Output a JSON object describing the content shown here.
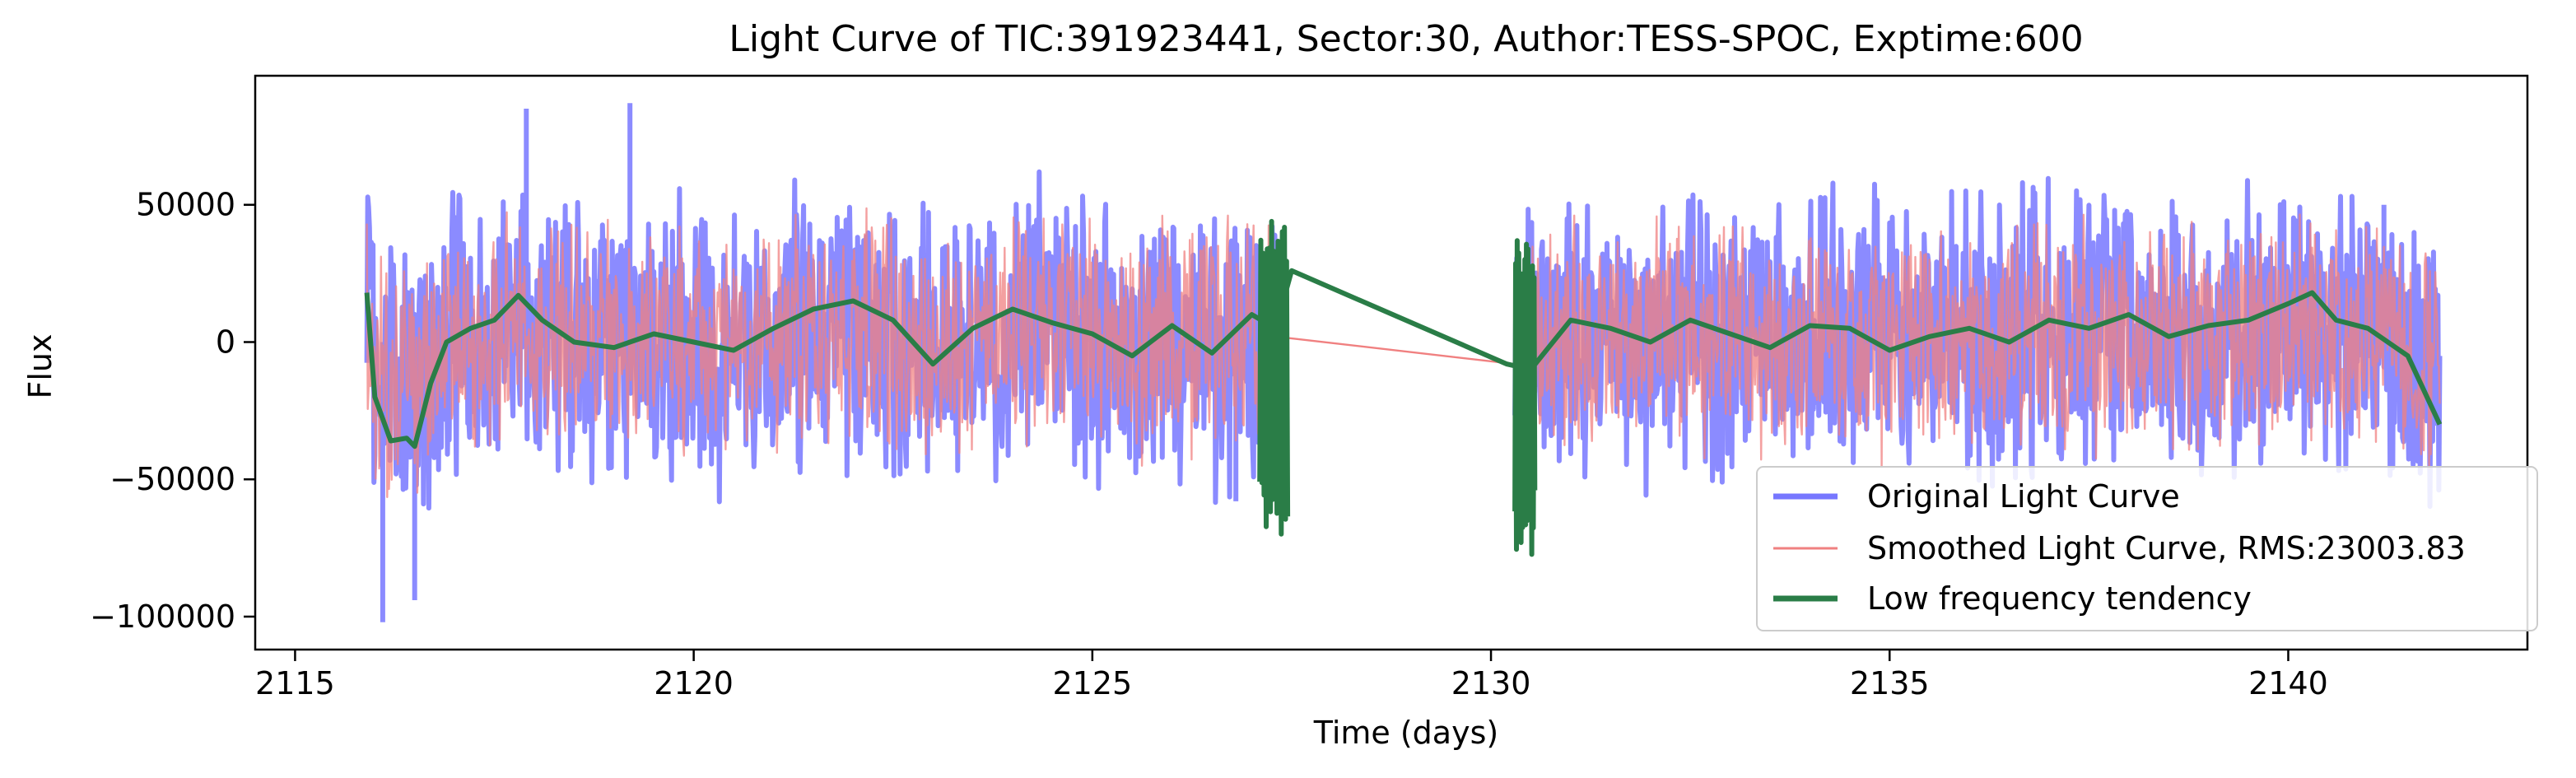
{
  "chart_data": {
    "type": "line",
    "title": "Light Curve of TIC:391923441, Sector:30, Author:TESS-SPOC, Exptime:600",
    "xlabel": "Time (days)",
    "ylabel": "Flux",
    "xlim": [
      2114.5,
      2143.0
    ],
    "ylim": [
      -112000,
      97000
    ],
    "xticks": [
      2115,
      2120,
      2125,
      2130,
      2135,
      2140
    ],
    "xtick_labels": [
      "2115",
      "2120",
      "2125",
      "2130",
      "2135",
      "2140"
    ],
    "yticks": [
      50000,
      0,
      -50000,
      -100000
    ],
    "ytick_labels": [
      "50000",
      "0",
      "−50000",
      "−100000"
    ],
    "grid": false,
    "legend_position": "lower-right",
    "segments": [
      [
        2115.9,
        2127.3
      ],
      [
        2130.3,
        2141.9
      ]
    ],
    "gap": [
      2127.3,
      2130.3
    ],
    "series": [
      {
        "name": "Original Light Curve",
        "color": "#7777ff",
        "style": "thick-noise",
        "amplitude": 50000,
        "notable_extremes": [
          [
            2116.1,
            -102000
          ],
          [
            2116.5,
            -94000
          ],
          [
            2117.9,
            85000
          ],
          [
            2119.2,
            87000
          ],
          [
            2126.8,
            -58000
          ],
          [
            2141.2,
            50000
          ]
        ]
      },
      {
        "name": "Smoothed Light Curve, RMS:23003.83",
        "color": "#f08080",
        "style": "thin-noise",
        "amplitude": 40000,
        "gap_line": [
          [
            2127.3,
            2000
          ],
          [
            2130.3,
            -8000
          ]
        ]
      },
      {
        "name": "Low frequency tendency",
        "color": "#2a7d47",
        "style": "thick-trend",
        "points": [
          [
            2115.9,
            18000
          ],
          [
            2116.0,
            -20000
          ],
          [
            2116.2,
            -36000
          ],
          [
            2116.4,
            -35000
          ],
          [
            2116.5,
            -38000
          ],
          [
            2116.7,
            -15000
          ],
          [
            2116.9,
            0
          ],
          [
            2117.2,
            5000
          ],
          [
            2117.5,
            8000
          ],
          [
            2117.8,
            17000
          ],
          [
            2118.1,
            8000
          ],
          [
            2118.5,
            0
          ],
          [
            2119.0,
            -2000
          ],
          [
            2119.5,
            3000
          ],
          [
            2120.0,
            0
          ],
          [
            2120.5,
            -3000
          ],
          [
            2121.0,
            5000
          ],
          [
            2121.5,
            12000
          ],
          [
            2122.0,
            15000
          ],
          [
            2122.5,
            8000
          ],
          [
            2123.0,
            -8000
          ],
          [
            2123.5,
            5000
          ],
          [
            2124.0,
            12000
          ],
          [
            2124.5,
            7000
          ],
          [
            2125.0,
            3000
          ],
          [
            2125.5,
            -5000
          ],
          [
            2126.0,
            6000
          ],
          [
            2126.5,
            -4000
          ],
          [
            2127.0,
            10000
          ],
          [
            2127.3,
            5000
          ],
          [
            2127.5,
            26000
          ],
          [
            2130.2,
            -8000
          ],
          [
            2130.5,
            -10000
          ],
          [
            2131.0,
            8000
          ],
          [
            2131.5,
            5000
          ],
          [
            2132.0,
            0
          ],
          [
            2132.5,
            8000
          ],
          [
            2133.0,
            3000
          ],
          [
            2133.5,
            -2000
          ],
          [
            2134.0,
            6000
          ],
          [
            2134.5,
            5000
          ],
          [
            2135.0,
            -3000
          ],
          [
            2135.5,
            2000
          ],
          [
            2136.0,
            5000
          ],
          [
            2136.5,
            0
          ],
          [
            2137.0,
            8000
          ],
          [
            2137.5,
            5000
          ],
          [
            2138.0,
            10000
          ],
          [
            2138.5,
            2000
          ],
          [
            2139.0,
            6000
          ],
          [
            2139.5,
            8000
          ],
          [
            2140.0,
            14000
          ],
          [
            2140.3,
            18000
          ],
          [
            2140.6,
            8000
          ],
          [
            2141.0,
            5000
          ],
          [
            2141.5,
            -5000
          ],
          [
            2141.9,
            -30000
          ]
        ],
        "oscillation_bursts": [
          {
            "x": [
              2127.1,
              2127.45
            ],
            "y": [
              -70000,
              45000
            ]
          },
          {
            "x": [
              2130.3,
              2130.55
            ],
            "y": [
              -85000,
              40000
            ]
          }
        ]
      }
    ]
  }
}
